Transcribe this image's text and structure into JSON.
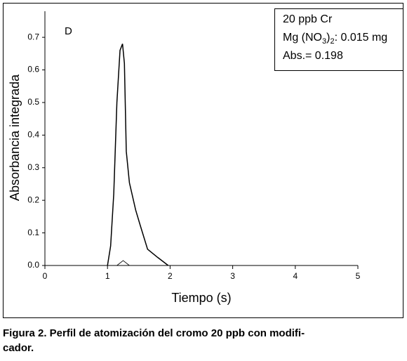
{
  "chart_data": {
    "type": "line",
    "xlabel": "Tiempo (s)",
    "ylabel": "Absorbancia integrada",
    "panel_label": "D",
    "annotation_lines": [
      "20 ppb Cr",
      [
        "Mg (NO",
        "3",
        ")",
        "2",
        ": 0.015 mg"
      ],
      "Abs.= 0.198"
    ],
    "series": [
      {
        "color": "#000000",
        "x": [
          1.0,
          1.05,
          1.1,
          1.15,
          1.2,
          1.24,
          1.27,
          1.3,
          1.35,
          1.45,
          1.52,
          1.64,
          1.8,
          1.97
        ],
        "values": [
          0,
          0.06,
          0.22,
          0.5,
          0.66,
          0.68,
          0.62,
          0.35,
          0.254,
          0.17,
          0.125,
          0.05,
          0.025,
          0
        ]
      },
      {
        "color": "#000000",
        "x": [
          1.15,
          1.25,
          1.35
        ],
        "values": [
          0,
          0.015,
          0
        ]
      }
    ],
    "xlim": [
      0,
      5
    ],
    "xticks": [
      0,
      1,
      2,
      3,
      4,
      5
    ],
    "ylim": [
      0,
      0.78
    ],
    "yticks": [
      {
        "value": 0,
        "label": "0.0"
      },
      0.1,
      0.2,
      0.3,
      0.4,
      0.5,
      0.6,
      0.7
    ]
  },
  "caption": [
    "Figura 2. Perfil de atomización del cromo 20 ppb con modifi-",
    "cador."
  ]
}
